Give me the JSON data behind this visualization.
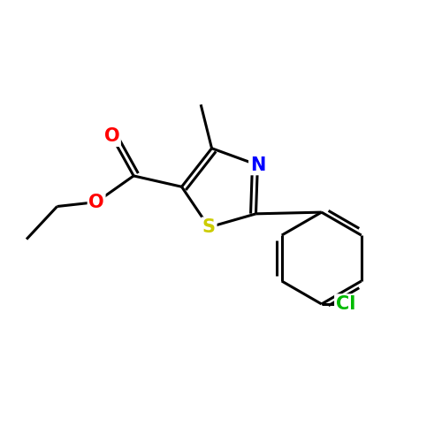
{
  "background_color": "#ffffff",
  "bond_color": "#000000",
  "bond_width": 2.2,
  "atom_colors": {
    "S": "#cccc00",
    "N": "#0000ff",
    "O": "#ff0000",
    "Cl": "#00bb00",
    "C": "#000000"
  },
  "font_size": 15,
  "fig_size": [
    5.0,
    5.0
  ],
  "dpi": 100
}
